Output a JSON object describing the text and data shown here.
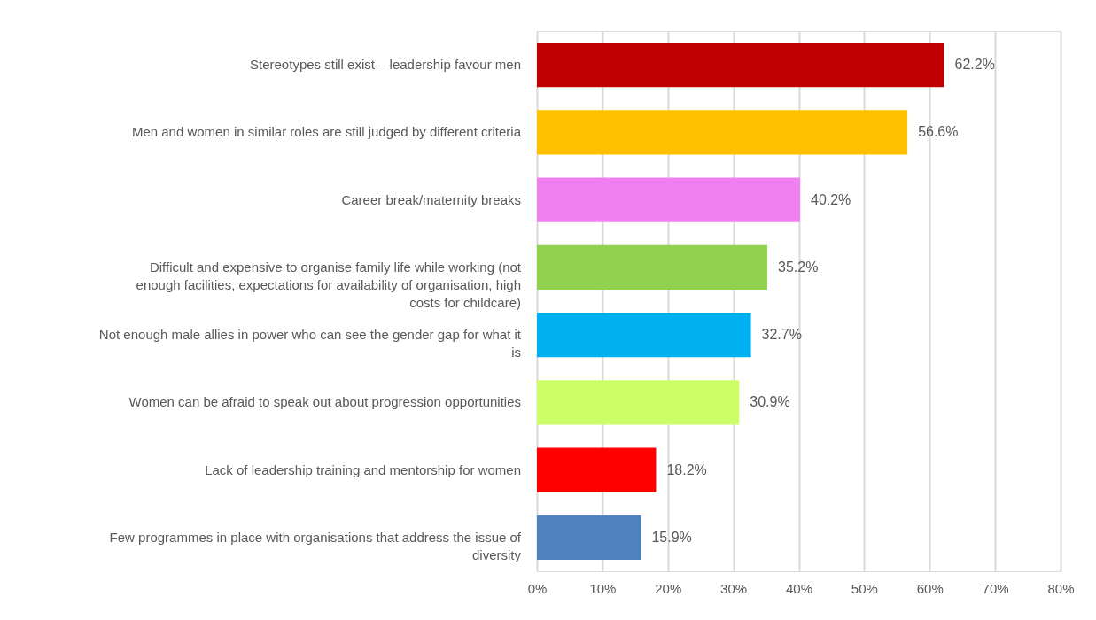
{
  "chart_data": {
    "type": "bar",
    "orientation": "horizontal",
    "categories": [
      "Stereotypes still exist – leadership favour men",
      "Men and women in similar roles are still judged by different criteria",
      "Career break/maternity breaks",
      "Difficult and expensive to organise family life while working (not enough facilities, expectations for availability of organisation, high costs for childcare)",
      "Not enough male allies in power who can see the gender gap for what it is",
      "Women can be afraid to speak out about progression opportunities",
      "Lack of leadership training and mentorship for women",
      "Few programmes in place with organisations that address the issue of diversity"
    ],
    "values": [
      62.2,
      56.6,
      40.2,
      35.2,
      32.7,
      30.9,
      18.2,
      15.9
    ],
    "value_labels": [
      "62.2%",
      "56.6%",
      "40.2%",
      "35.2%",
      "32.7%",
      "30.9%",
      "18.2%",
      "15.9%"
    ],
    "colors": [
      "#c00000",
      "#ffc000",
      "#f07ff0",
      "#92d050",
      "#00b0f0",
      "#ccff66",
      "#ff0000",
      "#4f81bd"
    ],
    "xlim": [
      0,
      80
    ],
    "xticks": [
      {
        "value": 0,
        "label": "0%"
      },
      {
        "value": 10,
        "label": "10%"
      },
      {
        "value": 20,
        "label": "20%"
      },
      {
        "value": 30,
        "label": "30%"
      },
      {
        "value": 40,
        "label": "40%"
      },
      {
        "value": 50,
        "label": "50%"
      },
      {
        "value": 60,
        "label": "60%"
      },
      {
        "value": 70,
        "label": "70%"
      },
      {
        "value": 80,
        "label": "80%"
      }
    ],
    "grid": "x"
  }
}
